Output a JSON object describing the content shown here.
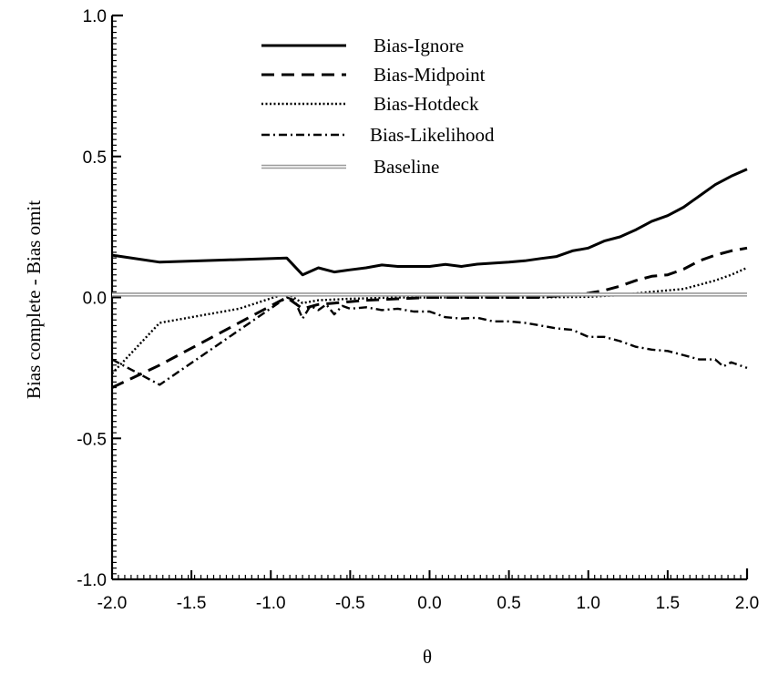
{
  "chart_data": {
    "type": "line",
    "title": "",
    "xlabel": "θ",
    "ylabel": "Bias complete - Bias omit",
    "xlim": [
      -2.0,
      2.0
    ],
    "ylim": [
      -1.0,
      1.0
    ],
    "x_ticks": [
      "-2.0",
      "-1.5",
      "-1.0",
      "-0.5",
      "0.0",
      "0.5",
      "1.0",
      "1.5",
      "2.0"
    ],
    "y_ticks": [
      "1.0",
      "0.5",
      "0.0",
      "-0.5",
      "-1.0"
    ],
    "legend_position": "top-center",
    "grid": false,
    "series": [
      {
        "name": "Bias-Ignore",
        "style": "solid",
        "points": [
          [
            -2.0,
            0.15
          ],
          [
            -1.7,
            0.125
          ],
          [
            -0.9,
            0.14
          ],
          [
            -0.8,
            0.08
          ],
          [
            -0.7,
            0.105
          ],
          [
            -0.6,
            0.09
          ],
          [
            -0.5,
            0.098
          ],
          [
            -0.4,
            0.105
          ],
          [
            -0.3,
            0.115
          ],
          [
            -0.2,
            0.11
          ],
          [
            -0.1,
            0.11
          ],
          [
            0.0,
            0.11
          ],
          [
            0.1,
            0.117
          ],
          [
            0.2,
            0.11
          ],
          [
            0.3,
            0.118
          ],
          [
            0.5,
            0.125
          ],
          [
            0.6,
            0.13
          ],
          [
            0.7,
            0.138
          ],
          [
            0.8,
            0.145
          ],
          [
            0.9,
            0.165
          ],
          [
            1.0,
            0.175
          ],
          [
            1.1,
            0.2
          ],
          [
            1.2,
            0.215
          ],
          [
            1.3,
            0.24
          ],
          [
            1.4,
            0.27
          ],
          [
            1.5,
            0.29
          ],
          [
            1.6,
            0.32
          ],
          [
            1.7,
            0.36
          ],
          [
            1.8,
            0.4
          ],
          [
            1.9,
            0.43
          ],
          [
            2.0,
            0.455
          ]
        ]
      },
      {
        "name": "Bias-Midpoint",
        "style": "dashed",
        "points": [
          [
            -2.0,
            -0.32
          ],
          [
            -1.7,
            -0.24
          ],
          [
            -0.9,
            0.0
          ],
          [
            -0.8,
            -0.04
          ],
          [
            -0.7,
            -0.025
          ],
          [
            -0.6,
            -0.02
          ],
          [
            -0.4,
            -0.01
          ],
          [
            -0.2,
            -0.005
          ],
          [
            0.0,
            0.0
          ],
          [
            0.4,
            0.0
          ],
          [
            0.7,
            0.0
          ],
          [
            0.9,
            0.01
          ],
          [
            1.0,
            0.015
          ],
          [
            1.1,
            0.025
          ],
          [
            1.2,
            0.04
          ],
          [
            1.3,
            0.06
          ],
          [
            1.4,
            0.075
          ],
          [
            1.5,
            0.08
          ],
          [
            1.6,
            0.1
          ],
          [
            1.7,
            0.13
          ],
          [
            1.8,
            0.15
          ],
          [
            1.9,
            0.165
          ],
          [
            2.0,
            0.175
          ]
        ]
      },
      {
        "name": "Bias-Hotdeck",
        "style": "dotted",
        "points": [
          [
            -2.0,
            -0.27
          ],
          [
            -1.7,
            -0.09
          ],
          [
            -1.2,
            -0.04
          ],
          [
            -0.9,
            0.015
          ],
          [
            -0.8,
            -0.02
          ],
          [
            -0.7,
            -0.01
          ],
          [
            -0.5,
            -0.005
          ],
          [
            -0.2,
            0.0
          ],
          [
            0.2,
            0.0
          ],
          [
            0.6,
            0.0
          ],
          [
            1.0,
            0.002
          ],
          [
            1.2,
            0.008
          ],
          [
            1.4,
            0.02
          ],
          [
            1.5,
            0.025
          ],
          [
            1.6,
            0.03
          ],
          [
            1.7,
            0.045
          ],
          [
            1.8,
            0.06
          ],
          [
            1.9,
            0.08
          ],
          [
            2.0,
            0.105
          ]
        ]
      },
      {
        "name": "Bias-Likelihood",
        "style": "dashdot",
        "points": [
          [
            -2.0,
            -0.22
          ],
          [
            -1.7,
            -0.31
          ],
          [
            -0.9,
            0.0
          ],
          [
            -0.85,
            -0.01
          ],
          [
            -0.8,
            -0.075
          ],
          [
            -0.75,
            -0.03
          ],
          [
            -0.7,
            -0.045
          ],
          [
            -0.65,
            -0.025
          ],
          [
            -0.6,
            -0.06
          ],
          [
            -0.55,
            -0.03
          ],
          [
            -0.5,
            -0.04
          ],
          [
            -0.4,
            -0.035
          ],
          [
            -0.3,
            -0.045
          ],
          [
            -0.2,
            -0.04
          ],
          [
            -0.1,
            -0.05
          ],
          [
            0.0,
            -0.05
          ],
          [
            0.1,
            -0.07
          ],
          [
            0.2,
            -0.075
          ],
          [
            0.3,
            -0.072
          ],
          [
            0.4,
            -0.085
          ],
          [
            0.5,
            -0.085
          ],
          [
            0.6,
            -0.09
          ],
          [
            0.7,
            -0.1
          ],
          [
            0.8,
            -0.11
          ],
          [
            0.9,
            -0.115
          ],
          [
            1.0,
            -0.14
          ],
          [
            1.1,
            -0.14
          ],
          [
            1.2,
            -0.155
          ],
          [
            1.3,
            -0.175
          ],
          [
            1.4,
            -0.185
          ],
          [
            1.5,
            -0.19
          ],
          [
            1.6,
            -0.205
          ],
          [
            1.7,
            -0.22
          ],
          [
            1.8,
            -0.22
          ],
          [
            1.85,
            -0.245
          ],
          [
            1.9,
            -0.23
          ],
          [
            2.0,
            -0.25
          ]
        ]
      },
      {
        "name": "Baseline",
        "style": "double",
        "points": [
          [
            -2.0,
            0.01
          ],
          [
            2.0,
            0.01
          ]
        ]
      }
    ]
  }
}
